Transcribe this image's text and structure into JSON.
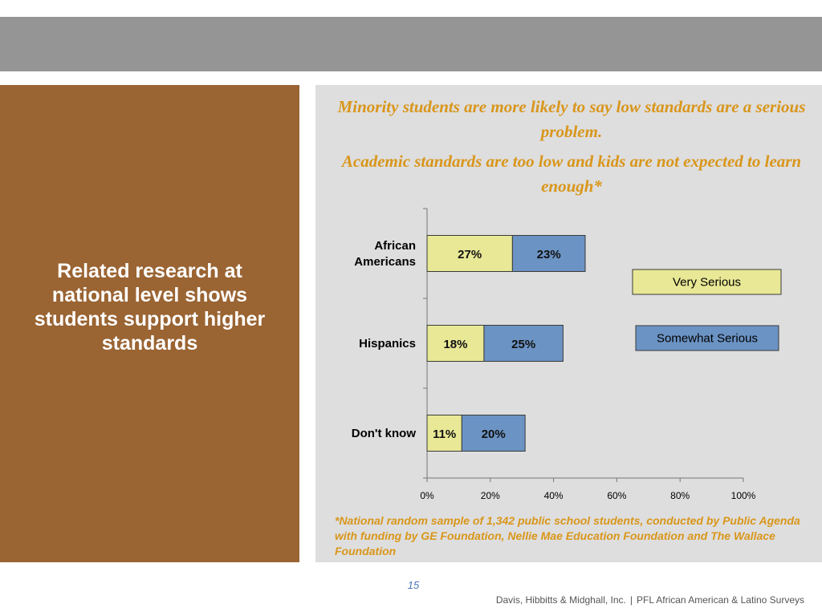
{
  "side_panel": {
    "text": "Related research at national level shows students support higher standards"
  },
  "chart_data": {
    "type": "bar",
    "orientation": "horizontal",
    "stacked": true,
    "title_lines": [
      "Minority students are more likely to say low standards are a serious problem."
    ],
    "subtitle_lines": [
      "Academic standards are too low and kids are not expected to learn enough*"
    ],
    "categories": [
      "African Americans",
      "Hispanics",
      "Don't know"
    ],
    "category_display": [
      [
        "African",
        "Americans"
      ],
      [
        "Hispanics"
      ],
      [
        "Don't know"
      ]
    ],
    "series": [
      {
        "name": "Very Serious",
        "values": [
          27,
          18,
          11
        ],
        "labels": [
          "27%",
          "18%",
          "11%"
        ],
        "color": "#e8e896"
      },
      {
        "name": "Somewhat Serious",
        "values": [
          23,
          25,
          20
        ],
        "labels": [
          "23%",
          "25%",
          "20%"
        ],
        "color": "#6b93c4"
      }
    ],
    "xlim": [
      0,
      100
    ],
    "xticks": [
      0,
      20,
      40,
      60,
      80,
      100
    ],
    "xtick_labels": [
      "0%",
      "20%",
      "40%",
      "60%",
      "80%",
      "100%"
    ],
    "xlabel": "",
    "ylabel": "",
    "legend": "right",
    "grid": false
  },
  "footnote": "*National random sample of 1,342 public school students, conducted by Public Agenda with funding by GE Foundation, Nellie Mae Education Foundation and The Wallace Foundation",
  "footer": {
    "page_number": "15",
    "credit_left": "Davis, Hibbitts & Midghall, Inc.",
    "separator": "|",
    "credit_right": "PFL African American  & Latino Surveys"
  },
  "colors": {
    "title": "#d9961a",
    "panel_brown": "#9a6433",
    "top_bar": "#959595",
    "chart_bg": "#dedede",
    "very_serious": "#e8e896",
    "somewhat_serious": "#6b93c4"
  }
}
